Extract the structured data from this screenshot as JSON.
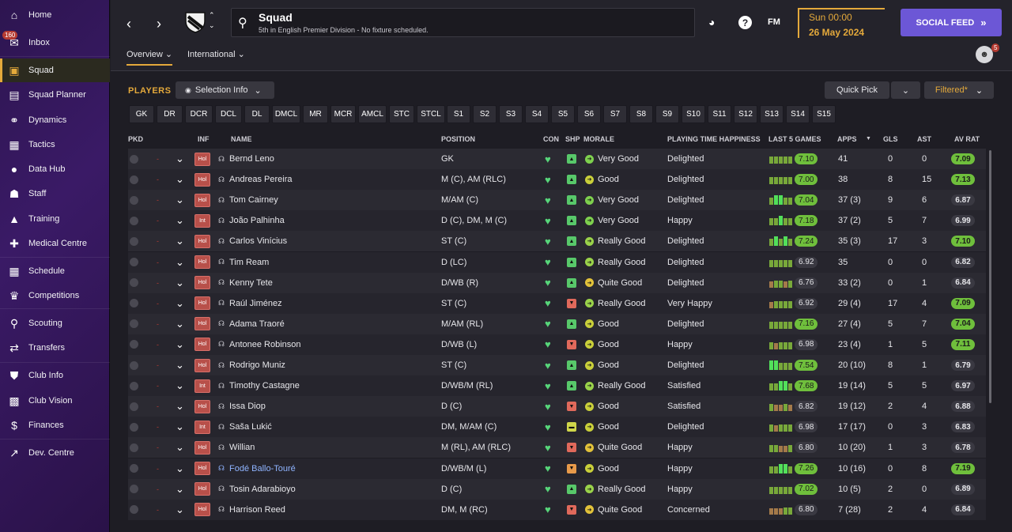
{
  "sidebar": {
    "items": [
      {
        "label": "Home",
        "icon": "home-icon",
        "glyph": "⌂"
      },
      {
        "label": "Inbox",
        "icon": "inbox-icon",
        "glyph": "✉",
        "badge": "160"
      },
      {
        "label": "Squad",
        "icon": "squad-shirt-icon",
        "glyph": "▣",
        "active": true
      },
      {
        "label": "Squad Planner",
        "icon": "clipboard-icon",
        "glyph": "▤"
      },
      {
        "label": "Dynamics",
        "icon": "dynamics-icon",
        "glyph": "⚭"
      },
      {
        "label": "Tactics",
        "icon": "tactics-icon",
        "glyph": "▦"
      },
      {
        "label": "Data Hub",
        "icon": "data-hub-icon",
        "glyph": "●"
      },
      {
        "label": "Staff",
        "icon": "staff-icon",
        "glyph": "☗"
      },
      {
        "label": "Training",
        "icon": "training-icon",
        "glyph": "▲"
      },
      {
        "label": "Medical Centre",
        "icon": "medical-icon",
        "glyph": "✚"
      },
      {
        "label": "Schedule",
        "icon": "calendar-icon",
        "glyph": "▦"
      },
      {
        "label": "Competitions",
        "icon": "trophy-icon",
        "glyph": "♛"
      },
      {
        "label": "Scouting",
        "icon": "magnifier-icon",
        "glyph": "⚲"
      },
      {
        "label": "Transfers",
        "icon": "transfers-icon",
        "glyph": "⇄"
      },
      {
        "label": "Club Info",
        "icon": "shield-icon",
        "glyph": "⛊"
      },
      {
        "label": "Club Vision",
        "icon": "briefcase-icon",
        "glyph": "▩"
      },
      {
        "label": "Finances",
        "icon": "finances-icon",
        "glyph": "$"
      },
      {
        "label": "Dev. Centre",
        "icon": "dev-centre-icon",
        "glyph": "↗"
      }
    ]
  },
  "header": {
    "title": "Squad",
    "subtitle": "5th in English Premier Division - No fixture scheduled.",
    "fm_label": "FM",
    "time": "Sun 00:00",
    "date": "26 May 2024",
    "social_feed": "SOCIAL FEED",
    "notification_count": "5",
    "tabs": [
      "Overview",
      "International"
    ]
  },
  "toolbar": {
    "players_label": "PLAYERS",
    "selection_info": "Selection Info",
    "quick_pick": "Quick Pick",
    "filtered": "Filtered*"
  },
  "positions": [
    "GK",
    "DR",
    "DCR",
    "DCL",
    "DL",
    "DMCL",
    "MR",
    "MCR",
    "AMCL",
    "STC",
    "STCL",
    "S1",
    "S2",
    "S3",
    "S4",
    "S5",
    "S6",
    "S7",
    "S8",
    "S9",
    "S10",
    "S11",
    "S12",
    "S13",
    "S14",
    "S15"
  ],
  "columns": {
    "pkd": "PKD",
    "inf": "INF",
    "name": "NAME",
    "position": "POSITION",
    "con": "CON",
    "shp": "SHP",
    "morale": "MORALE",
    "pth": "PLAYING TIME HAPPINESS",
    "last5": "LAST 5 GAMES",
    "apps": "APPS",
    "gls": "GLS",
    "ast": "AST",
    "avrat": "AV RAT"
  },
  "colors": {
    "accent": "#e4a93b",
    "brand": "#6c57d6",
    "good_rating": "#6fbf3c",
    "high_rating": "#7ad04a"
  },
  "players": [
    {
      "inf": "Hol",
      "name": "Bernd Leno",
      "position": "GK",
      "shp": "up",
      "morale": "Very Good",
      "pth": "Delighted",
      "avg": "7.10",
      "avg_hi": true,
      "apps": "41",
      "gls": "0",
      "ast": "0",
      "rat": "7.09",
      "rat_hi": true,
      "form": [
        2,
        2,
        2,
        2,
        2
      ]
    },
    {
      "inf": "Hol",
      "name": "Andreas Pereira",
      "position": "M (C), AM (RLC)",
      "shp": "up",
      "morale": "Good",
      "pth": "Delighted",
      "avg": "7.00",
      "avg_hi": true,
      "apps": "38",
      "gls": "8",
      "ast": "15",
      "rat": "7.13",
      "rat_hi": true,
      "form": [
        2,
        2,
        2,
        2,
        2
      ]
    },
    {
      "inf": "Hol",
      "name": "Tom Cairney",
      "position": "M/AM (C)",
      "shp": "up",
      "morale": "Very Good",
      "pth": "Delighted",
      "avg": "7.04",
      "avg_hi": true,
      "apps": "37 (3)",
      "gls": "9",
      "ast": "6",
      "rat": "6.87",
      "rat_hi": false,
      "form": [
        2,
        3,
        3,
        2,
        2
      ]
    },
    {
      "inf": "Int",
      "name": "João Palhinha",
      "position": "D (C), DM, M (C)",
      "shp": "up",
      "morale": "Very Good",
      "pth": "Happy",
      "avg": "7.18",
      "avg_hi": true,
      "apps": "37 (2)",
      "gls": "5",
      "ast": "7",
      "rat": "6.99",
      "rat_hi": false,
      "form": [
        2,
        2,
        3,
        2,
        2
      ]
    },
    {
      "inf": "Hol",
      "name": "Carlos Vinícius",
      "position": "ST (C)",
      "shp": "up",
      "morale": "Really Good",
      "pth": "Delighted",
      "avg": "7.24",
      "avg_hi": true,
      "apps": "35 (3)",
      "gls": "17",
      "ast": "3",
      "rat": "7.10",
      "rat_hi": true,
      "form": [
        2,
        3,
        2,
        3,
        2
      ]
    },
    {
      "inf": "Hol",
      "name": "Tim Ream",
      "position": "D (LC)",
      "shp": "up",
      "morale": "Really Good",
      "pth": "Delighted",
      "avg": "6.92",
      "avg_hi": false,
      "apps": "35",
      "gls": "0",
      "ast": "0",
      "rat": "6.82",
      "rat_hi": false,
      "form": [
        2,
        2,
        2,
        2,
        2
      ]
    },
    {
      "inf": "Hol",
      "name": "Kenny Tete",
      "position": "D/WB (R)",
      "shp": "up",
      "morale": "Quite Good",
      "pth": "Delighted",
      "avg": "6.76",
      "avg_hi": false,
      "apps": "33 (2)",
      "gls": "0",
      "ast": "1",
      "rat": "6.84",
      "rat_hi": false,
      "form": [
        1,
        2,
        2,
        1,
        2
      ]
    },
    {
      "inf": "Hol",
      "name": "Raúl Jiménez",
      "position": "ST (C)",
      "shp": "down",
      "morale": "Really Good",
      "pth": "Very Happy",
      "avg": "6.92",
      "avg_hi": false,
      "apps": "29 (4)",
      "gls": "17",
      "ast": "4",
      "rat": "7.09",
      "rat_hi": true,
      "form": [
        1,
        2,
        2,
        2,
        2
      ]
    },
    {
      "inf": "Hol",
      "name": "Adama Traoré",
      "position": "M/AM (RL)",
      "shp": "up",
      "morale": "Good",
      "pth": "Delighted",
      "avg": "7.16",
      "avg_hi": true,
      "apps": "27 (4)",
      "gls": "5",
      "ast": "7",
      "rat": "7.04",
      "rat_hi": true,
      "form": [
        2,
        2,
        2,
        2,
        2
      ]
    },
    {
      "inf": "Hol",
      "name": "Antonee Robinson",
      "position": "D/WB (L)",
      "shp": "down",
      "morale": "Good",
      "pth": "Happy",
      "avg": "6.98",
      "avg_hi": false,
      "apps": "23 (4)",
      "gls": "1",
      "ast": "5",
      "rat": "7.11",
      "rat_hi": true,
      "form": [
        2,
        1,
        2,
        2,
        2
      ]
    },
    {
      "inf": "Hol",
      "name": "Rodrigo Muniz",
      "position": "ST (C)",
      "shp": "up",
      "morale": "Good",
      "pth": "Delighted",
      "avg": "7.54",
      "avg_hi": true,
      "apps": "20 (10)",
      "gls": "8",
      "ast": "1",
      "rat": "6.79",
      "rat_hi": false,
      "form": [
        3,
        3,
        2,
        2,
        2
      ]
    },
    {
      "inf": "Int",
      "name": "Timothy Castagne",
      "position": "D/WB/M (RL)",
      "shp": "up",
      "morale": "Really Good",
      "pth": "Satisfied",
      "avg": "7.68",
      "avg_hi": true,
      "apps": "19 (14)",
      "gls": "5",
      "ast": "5",
      "rat": "6.97",
      "rat_hi": false,
      "form": [
        2,
        2,
        3,
        3,
        2
      ]
    },
    {
      "inf": "Hol",
      "name": "Issa Diop",
      "position": "D (C)",
      "shp": "down",
      "morale": "Good",
      "pth": "Satisfied",
      "avg": "6.82",
      "avg_hi": false,
      "apps": "19 (12)",
      "gls": "2",
      "ast": "4",
      "rat": "6.88",
      "rat_hi": false,
      "form": [
        2,
        1,
        1,
        2,
        1
      ]
    },
    {
      "inf": "Int",
      "name": "Saša Lukić",
      "position": "DM, M/AM (C)",
      "shp": "neutral",
      "morale": "Good",
      "pth": "Delighted",
      "avg": "6.98",
      "avg_hi": false,
      "apps": "17 (17)",
      "gls": "0",
      "ast": "3",
      "rat": "6.83",
      "rat_hi": false,
      "form": [
        2,
        1,
        2,
        2,
        2
      ]
    },
    {
      "inf": "Hol",
      "name": "Willian",
      "position": "M (RL), AM (RLC)",
      "shp": "down",
      "morale": "Quite Good",
      "pth": "Happy",
      "avg": "6.80",
      "avg_hi": false,
      "apps": "10 (20)",
      "gls": "1",
      "ast": "3",
      "rat": "6.78",
      "rat_hi": false,
      "form": [
        2,
        2,
        1,
        1,
        2
      ]
    },
    {
      "inf": "Hol",
      "name": "Fodé Ballo-Touré",
      "position": "D/WB/M (L)",
      "shp": "mid",
      "morale": "Good",
      "pth": "Happy",
      "avg": "7.26",
      "avg_hi": true,
      "apps": "10 (16)",
      "gls": "0",
      "ast": "8",
      "rat": "7.19",
      "rat_hi": true,
      "form": [
        2,
        2,
        3,
        3,
        2
      ],
      "highlight": true
    },
    {
      "inf": "Hol",
      "name": "Tosin Adarabioyo",
      "position": "D (C)",
      "shp": "up",
      "morale": "Really Good",
      "pth": "Happy",
      "avg": "7.02",
      "avg_hi": true,
      "apps": "10 (5)",
      "gls": "2",
      "ast": "0",
      "rat": "6.89",
      "rat_hi": false,
      "form": [
        2,
        2,
        2,
        2,
        2
      ]
    },
    {
      "inf": "Hol",
      "name": "Harrison Reed",
      "position": "DM, M (RC)",
      "shp": "down",
      "morale": "Quite Good",
      "pth": "Concerned",
      "avg": "6.80",
      "avg_hi": false,
      "apps": "7 (28)",
      "gls": "2",
      "ast": "4",
      "rat": "6.84",
      "rat_hi": false,
      "form": [
        1,
        1,
        1,
        2,
        2
      ]
    }
  ]
}
